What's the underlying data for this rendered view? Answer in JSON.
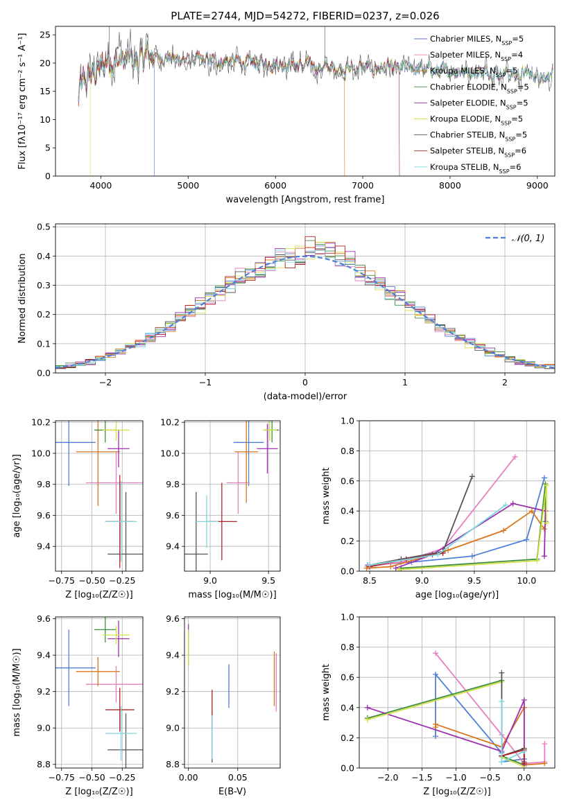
{
  "chart_data": [
    {
      "id": "spectrum",
      "type": "line",
      "title": "PLATE=2744, MJD=54272, FIBERID=0237, z=0.026",
      "xlabel": "wavelength [Angstrom, rest frame]",
      "ylabel": "Flux [fλ10⁻¹⁷ erg cm⁻² s⁻¹ A⁻¹]",
      "xlim": [
        3480,
        9200
      ],
      "ylim": [
        0,
        26.5
      ],
      "xticks": [
        4000,
        5000,
        6000,
        7000,
        8000,
        9000
      ],
      "yticks": [
        0,
        5,
        10,
        15,
        20,
        25
      ],
      "grid": false,
      "legend_position": "upper-right",
      "series": [
        {
          "name": "Chabrier MILES, N",
          "sub": "SSP",
          "suffix": "=5",
          "color": "#4f7fd6"
        },
        {
          "name": "Salpeter MILES, N",
          "sub": "SSP",
          "suffix": "=4",
          "color": "#e67fbd"
        },
        {
          "name": "Kroupa MILES, N",
          "sub": "SSP",
          "suffix": "=5",
          "color": "#d9771e"
        },
        {
          "name": "Chabrier ELODIE, N",
          "sub": "SSP",
          "suffix": "=5",
          "color": "#3f8f3f"
        },
        {
          "name": "Salpeter ELODIE, N",
          "sub": "SSP",
          "suffix": "=5",
          "color": "#9b2fae"
        },
        {
          "name": "Kroupa ELODIE, N",
          "sub": "SSP",
          "suffix": "=5",
          "color": "#d4e04a"
        },
        {
          "name": "Chabrier STELIB, N",
          "sub": "SSP",
          "suffix": "=5",
          "color": "#555555"
        },
        {
          "name": "Salpeter STELIB, N",
          "sub": "SSP",
          "suffix": "=6",
          "color": "#b22222"
        },
        {
          "name": "Kroupa STELIB, N",
          "sub": "SSP",
          "suffix": "=6",
          "color": "#7fd6e0"
        }
      ]
    },
    {
      "id": "residuals",
      "type": "line",
      "xlabel": "(data-model)/error",
      "ylabel": "Normed distribution",
      "xlim": [
        -2.5,
        2.5
      ],
      "ylim": [
        0,
        0.51
      ],
      "xticks": [
        -2,
        -1,
        0,
        1,
        2
      ],
      "xtick_labels": [
        "−2",
        "−1",
        "0",
        "1",
        "2"
      ],
      "yticks": [
        0.0,
        0.1,
        0.2,
        0.3,
        0.4,
        0.5
      ],
      "ytick_labels": [
        "0.0",
        "0.1",
        "0.2",
        "0.3",
        "0.4",
        "0.5"
      ],
      "grid": true,
      "legend_position": "upper-right",
      "legend_label": "𝒩(0, 1)",
      "gaussian_color": "#4f7fd6"
    },
    {
      "id": "age-vs-Z",
      "type": "scatter",
      "xlabel": "Z [log₁₀(Z/Z☉)]",
      "ylabel": "age  [log₁₀(age/yr)]",
      "xlim": [
        -0.8,
        -0.08
      ],
      "ylim": [
        9.24,
        10.21
      ],
      "xticks": [
        -0.75,
        -0.5,
        -0.25
      ],
      "xtick_labels": [
        "−0.75",
        "−0.50",
        "−0.25"
      ],
      "yticks": [
        9.4,
        9.6,
        9.8,
        10.0,
        10.2
      ],
      "ytick_labels": [
        "9.4",
        "9.6",
        "9.8",
        "10.0",
        "10.2"
      ],
      "grid": true,
      "points": [
        {
          "x": -0.69,
          "y": 10.07,
          "xerr": 0.22,
          "yerr": 0.28,
          "color": "#4f7fd6"
        },
        {
          "x": -0.3,
          "y": 9.81,
          "xerr": 0.25,
          "yerr": 0.2,
          "color": "#e67fbd"
        },
        {
          "x": -0.45,
          "y": 10.01,
          "xerr": 0.18,
          "yerr": 0.35,
          "color": "#d9771e"
        },
        {
          "x": -0.39,
          "y": 10.15,
          "xerr": 0.09,
          "yerr": 0.08,
          "color": "#3f8f3f"
        },
        {
          "x": -0.28,
          "y": 10.03,
          "xerr": 0.09,
          "yerr": 0.12,
          "color": "#9b2fae"
        },
        {
          "x": -0.3,
          "y": 10.15,
          "xerr": 0.11,
          "yerr": 0.07,
          "color": "#d4e04a"
        },
        {
          "x": -0.22,
          "y": 9.35,
          "xerr": 0.15,
          "yerr": 0.4,
          "color": "#555555"
        },
        {
          "x": -0.27,
          "y": 9.56,
          "xerr": 0.12,
          "yerr": 0.3,
          "color": "#b22222"
        },
        {
          "x": -0.26,
          "y": 9.56,
          "xerr": 0.13,
          "yerr": 0.26,
          "color": "#7fd6e0"
        }
      ]
    },
    {
      "id": "age-vs-mass",
      "type": "scatter",
      "xlabel": "mass [log₁₀(M/M☉)]",
      "ylabel": "",
      "xlim": [
        8.78,
        9.6
      ],
      "ylim": [
        9.24,
        10.21
      ],
      "xticks": [
        9.0,
        9.5
      ],
      "xtick_labels": [
        "9.0",
        "9.5"
      ],
      "yticks": [
        9.4,
        9.6,
        9.8,
        10.0,
        10.2
      ],
      "ytick_labels": [
        "9.4",
        "9.6",
        "9.8",
        "10.0",
        "10.2"
      ],
      "grid": true,
      "points": [
        {
          "x": 9.33,
          "y": 10.07,
          "xerr": 0.13,
          "yerr": 0.28,
          "color": "#4f7fd6"
        },
        {
          "x": 9.24,
          "y": 9.81,
          "xerr": 0.1,
          "yerr": 0.2,
          "color": "#e67fbd"
        },
        {
          "x": 9.31,
          "y": 10.01,
          "xerr": 0.1,
          "yerr": 0.33,
          "color": "#d9771e"
        },
        {
          "x": 9.53,
          "y": 10.15,
          "xerr": 0.06,
          "yerr": 0.08,
          "color": "#3f8f3f"
        },
        {
          "x": 9.49,
          "y": 10.03,
          "xerr": 0.09,
          "yerr": 0.16,
          "color": "#9b2fae"
        },
        {
          "x": 9.51,
          "y": 10.15,
          "xerr": 0.06,
          "yerr": 0.07,
          "color": "#d4e04a"
        },
        {
          "x": 8.88,
          "y": 9.35,
          "xerr": 0.1,
          "yerr": 0.4,
          "color": "#555555"
        },
        {
          "x": 9.1,
          "y": 9.56,
          "xerr": 0.13,
          "yerr": 0.25,
          "color": "#b22222"
        },
        {
          "x": 8.97,
          "y": 9.56,
          "xerr": 0.1,
          "yerr": 0.17,
          "color": "#7fd6e0"
        }
      ]
    },
    {
      "id": "mass-weight-vs-age",
      "type": "line",
      "xlabel": "age  [log₁₀(age/yr)]",
      "ylabel": "mass weight",
      "xlim": [
        8.4,
        10.27
      ],
      "ylim": [
        0,
        1.0
      ],
      "xticks": [
        8.5,
        9.0,
        9.5,
        10.0
      ],
      "xtick_labels": [
        "8.5",
        "9.0",
        "9.5",
        "10.0"
      ],
      "yticks": [
        0.0,
        0.2,
        0.4,
        0.6,
        0.8,
        1.0
      ],
      "ytick_labels": [
        "0.0",
        "0.2",
        "0.4",
        "0.6",
        "0.8",
        "1.0"
      ],
      "grid": true,
      "series": [
        {
          "color": "#4f7fd6",
          "x": [
            8.48,
            8.9,
            9.48,
            10.0,
            10.17
          ],
          "y": [
            0.04,
            0.06,
            0.1,
            0.21,
            0.62
          ]
        },
        {
          "color": "#e67fbd",
          "x": [
            8.48,
            8.8,
            9.2,
            9.89
          ],
          "y": [
            0.03,
            0.06,
            0.15,
            0.76
          ]
        },
        {
          "color": "#d9771e",
          "x": [
            8.47,
            8.7,
            9.25,
            9.78,
            10.05,
            10.17
          ],
          "y": [
            0.02,
            0.03,
            0.14,
            0.27,
            0.4,
            0.28
          ]
        },
        {
          "color": "#3f8f3f",
          "x": [
            8.8,
            10.1,
            10.18,
            10.18
          ],
          "y": [
            0.02,
            0.08,
            0.58,
            0.33
          ]
        },
        {
          "color": "#9b2fae",
          "x": [
            8.75,
            9.1,
            9.87,
            10.18,
            10.17
          ],
          "y": [
            0.02,
            0.11,
            0.45,
            0.4,
            0.1
          ]
        },
        {
          "color": "#d4e04a",
          "x": [
            8.78,
            10.1,
            10.19,
            10.19
          ],
          "y": [
            0.01,
            0.07,
            0.57,
            0.32
          ]
        },
        {
          "color": "#555555",
          "x": [
            8.5,
            8.8,
            9.2,
            9.48
          ],
          "y": [
            0.04,
            0.08,
            0.13,
            0.63
          ]
        },
        {
          "color": "#b22222",
          "x": [
            8.5,
            8.85,
            9.2
          ],
          "y": [
            0.03,
            0.08,
            0.12
          ]
        },
        {
          "color": "#7fd6e0",
          "x": [
            8.5,
            9.15,
            9.8
          ],
          "y": [
            0.04,
            0.11,
            0.44
          ]
        }
      ]
    },
    {
      "id": "mass-vs-Z",
      "type": "scatter",
      "xlabel": "Z [log₁₀(Z/Z☉)]",
      "ylabel": "mass [log₁₀(M/M☉)]",
      "xlim": [
        -0.8,
        -0.08
      ],
      "ylim": [
        8.78,
        9.61
      ],
      "xticks": [
        -0.75,
        -0.5,
        -0.25
      ],
      "xtick_labels": [
        "−0.75",
        "−0.50",
        "−0.25"
      ],
      "yticks": [
        8.8,
        9.0,
        9.2,
        9.4,
        9.6
      ],
      "ytick_labels": [
        "8.8",
        "9.0",
        "9.2",
        "9.4",
        "9.6"
      ],
      "grid": true,
      "points": [
        {
          "x": -0.69,
          "y": 9.33,
          "xerr": 0.22,
          "yerr": 0.21,
          "color": "#4f7fd6"
        },
        {
          "x": -0.3,
          "y": 9.24,
          "xerr": 0.25,
          "yerr": 0.1,
          "color": "#e67fbd"
        },
        {
          "x": -0.45,
          "y": 9.31,
          "xerr": 0.18,
          "yerr": 0.08,
          "color": "#d9771e"
        },
        {
          "x": -0.39,
          "y": 9.54,
          "xerr": 0.09,
          "yerr": 0.07,
          "color": "#3f8f3f"
        },
        {
          "x": -0.28,
          "y": 9.49,
          "xerr": 0.09,
          "yerr": 0.1,
          "color": "#9b2fae"
        },
        {
          "x": -0.3,
          "y": 9.51,
          "xerr": 0.11,
          "yerr": 0.05,
          "color": "#d4e04a"
        },
        {
          "x": -0.22,
          "y": 8.88,
          "xerr": 0.15,
          "yerr": 0.2,
          "color": "#555555"
        },
        {
          "x": -0.27,
          "y": 9.1,
          "xerr": 0.12,
          "yerr": 0.12,
          "color": "#b22222"
        },
        {
          "x": -0.26,
          "y": 8.97,
          "xerr": 0.13,
          "yerr": 0.15,
          "color": "#7fd6e0"
        }
      ]
    },
    {
      "id": "mass-vs-EBV",
      "type": "scatter",
      "xlabel": "E(B-V)",
      "ylabel": "",
      "xlim": [
        -0.004,
        0.093
      ],
      "ylim": [
        8.78,
        9.61
      ],
      "xticks": [
        0.0,
        0.05
      ],
      "xtick_labels": [
        "0.00",
        "0.05"
      ],
      "yticks": [
        8.8,
        9.0,
        9.2,
        9.4,
        9.6
      ],
      "ytick_labels": [
        "8.8",
        "9.0",
        "9.2",
        "9.4",
        "9.6"
      ],
      "grid": true,
      "points": [
        {
          "x": 0.041,
          "y": 9.23,
          "xerr": 0,
          "yerr": 0.12,
          "color": "#4f7fd6"
        },
        {
          "x": 0.089,
          "y": 9.25,
          "xerr": 0,
          "yerr": 0.16,
          "color": "#e67fbd"
        },
        {
          "x": 0.087,
          "y": 9.27,
          "xerr": 0,
          "yerr": 0.15,
          "color": "#d9771e"
        },
        {
          "x": 0.0,
          "y": 9.44,
          "xerr": 0,
          "yerr": 0.1,
          "color": "#3f8f3f"
        },
        {
          "x": 0.0,
          "y": 9.52,
          "xerr": 0,
          "yerr": 0.05,
          "color": "#9b2fae"
        },
        {
          "x": 0.0,
          "y": 9.44,
          "xerr": 0,
          "yerr": 0.1,
          "color": "#d4e04a"
        },
        {
          "x": 0.024,
          "y": 8.95,
          "xerr": 0,
          "yerr": 0.14,
          "color": "#555555"
        },
        {
          "x": 0.024,
          "y": 9.1,
          "xerr": 0,
          "yerr": 0.11,
          "color": "#b22222"
        },
        {
          "x": 0.024,
          "y": 8.95,
          "xerr": 0,
          "yerr": 0.12,
          "color": "#7fd6e0"
        }
      ]
    },
    {
      "id": "mass-weight-vs-Z",
      "type": "line",
      "xlabel": "Z [log₁₀(Z/Z☉)]",
      "ylabel": "mass weight",
      "xlim": [
        -2.42,
        0.45
      ],
      "ylim": [
        0,
        1.0
      ],
      "xticks": [
        -2.0,
        -1.5,
        -1.0,
        -0.5,
        0.0
      ],
      "xtick_labels": [
        "−2.0",
        "−1.5",
        "−1.0",
        "−0.5",
        "0.0"
      ],
      "yticks": [
        0.0,
        0.2,
        0.4,
        0.6,
        0.8,
        1.0
      ],
      "ytick_labels": [
        "0.0",
        "0.2",
        "0.4",
        "0.6",
        "0.8",
        "1.0"
      ],
      "grid": true,
      "series": [
        {
          "color": "#4f7fd6",
          "x": [
            -1.3,
            -1.3,
            -0.33,
            -0.33,
            0.0
          ],
          "y": [
            0.21,
            0.62,
            0.1,
            0.04,
            0.06
          ]
        },
        {
          "color": "#e67fbd",
          "x": [
            -1.3,
            -0.33,
            0.0,
            0.3,
            0.3
          ],
          "y": [
            0.76,
            0.22,
            0.03,
            0.04,
            0.16
          ]
        },
        {
          "color": "#d9771e",
          "x": [
            -1.3,
            -1.3,
            -0.33,
            0.0,
            0.0,
            0.3
          ],
          "y": [
            0.27,
            0.29,
            0.14,
            0.4,
            0.02,
            0.03
          ]
        },
        {
          "color": "#3f8f3f",
          "x": [
            -2.3,
            -0.33,
            -0.33,
            0.0
          ],
          "y": [
            0.33,
            0.58,
            0.08,
            0.02
          ]
        },
        {
          "color": "#9b2fae",
          "x": [
            -2.3,
            -0.33,
            0.0,
            0.0
          ],
          "y": [
            0.4,
            0.11,
            0.45,
            0.02
          ]
        },
        {
          "color": "#d4e04a",
          "x": [
            -2.3,
            -0.33,
            -0.33,
            0.0
          ],
          "y": [
            0.32,
            0.57,
            0.07,
            0.01
          ]
        },
        {
          "color": "#555555",
          "x": [
            -0.33,
            -0.33,
            0.0,
            0.0
          ],
          "y": [
            0.63,
            0.08,
            0.13,
            0.04
          ]
        },
        {
          "color": "#b22222",
          "x": [
            -0.33,
            0.0,
            0.0
          ],
          "y": [
            0.08,
            0.12,
            0.03
          ]
        },
        {
          "color": "#7fd6e0",
          "x": [
            -0.33,
            -0.33,
            0.0
          ],
          "y": [
            0.44,
            0.04,
            0.11
          ]
        }
      ]
    }
  ]
}
